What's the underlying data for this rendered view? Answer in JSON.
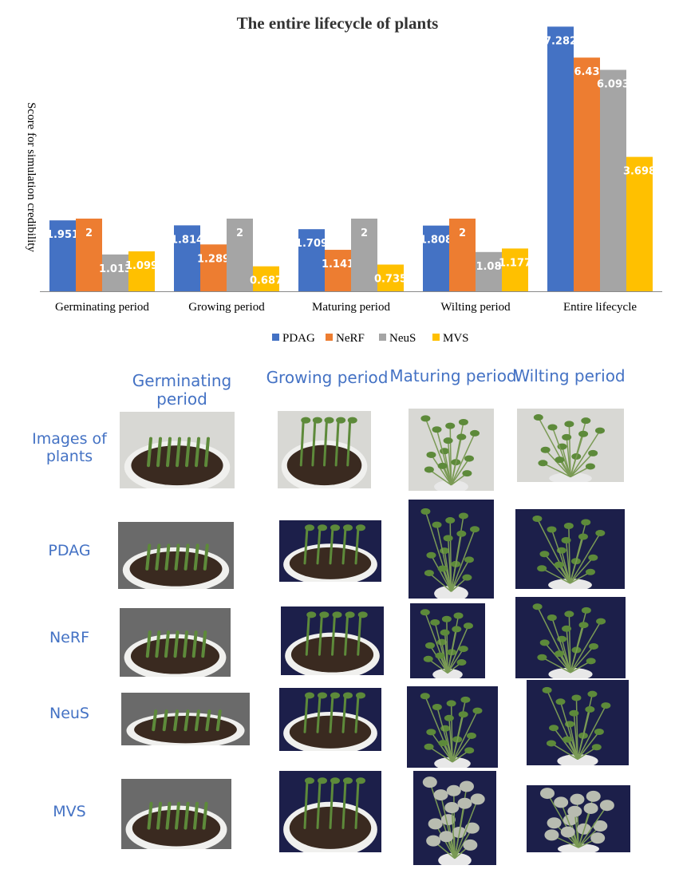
{
  "chart_data": {
    "type": "bar",
    "title": "The entire lifecycle of plants",
    "ylabel": "Score for simulation credibility",
    "xlabel": "",
    "categories": [
      "Germinating period",
      "Growing period",
      "Maturing period",
      "Wilting period",
      "Entire lifecycle"
    ],
    "series": [
      {
        "name": "PDAG",
        "color": "#4472C4",
        "values": [
          1.951,
          1.814,
          1.709,
          1.808,
          7.282
        ]
      },
      {
        "name": "NeRF",
        "color": "#ED7D31",
        "values": [
          2,
          1.289,
          1.141,
          2,
          6.43
        ]
      },
      {
        "name": "NeuS",
        "color": "#A5A5A5",
        "values": [
          1.013,
          2,
          2,
          1.08,
          6.093
        ]
      },
      {
        "name": "MVS",
        "color": "#FFC000",
        "values": [
          1.099,
          0.687,
          0.735,
          1.177,
          3.698
        ]
      }
    ],
    "ylim": [
      0,
      7.4
    ],
    "grid": false,
    "legend": "bottom"
  },
  "grid": {
    "columns": [
      "Germinating period",
      "Growing period",
      "Maturing period",
      "Wilting period"
    ],
    "rows": [
      "Images of plants",
      "PDAG",
      "NeRF",
      "NeuS",
      "MVS"
    ]
  },
  "colors": {
    "label_blue": "#4472C4",
    "render_background": "#1c1f4a",
    "soil": "#3a2a20",
    "leaf": "#5d8a3a"
  }
}
